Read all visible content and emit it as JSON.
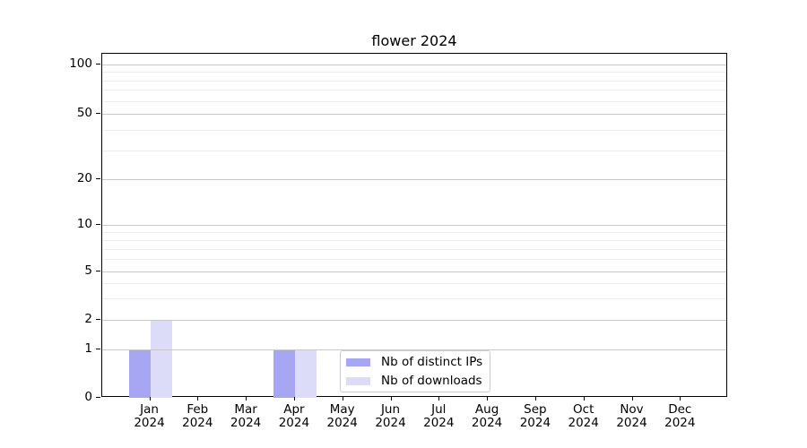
{
  "figure_title": "flower 2024",
  "chart_data": {
    "type": "bar",
    "title": "flower 2024",
    "categories": [
      "Jan 2024",
      "Feb 2024",
      "Mar 2024",
      "Apr 2024",
      "May 2024",
      "Jun 2024",
      "Jul 2024",
      "Aug 2024",
      "Sep 2024",
      "Oct 2024",
      "Nov 2024",
      "Dec 2024"
    ],
    "series": [
      {
        "name": "Nb of distinct IPs",
        "color": "#a6a6f3",
        "values": [
          1,
          0,
          0,
          1,
          0,
          0,
          0,
          0,
          0,
          0,
          0,
          0
        ]
      },
      {
        "name": "Nb of downloads",
        "color": "#dcdcf8",
        "values": [
          2,
          0,
          0,
          1,
          0,
          0,
          0,
          0,
          0,
          0,
          0,
          0
        ]
      }
    ],
    "xlabel": "",
    "ylabel": "",
    "y_axis": {
      "scale": "log-like (0 baseline then logarithmic)",
      "major_ticks": [
        0,
        1,
        2,
        5,
        10,
        20,
        50,
        100
      ],
      "minor_ticks": [
        3,
        4,
        6,
        7,
        8,
        9,
        30,
        40,
        60,
        70,
        80,
        90
      ],
      "range_top": 120
    },
    "grid": true,
    "legend": {
      "position": "lower center inside plot",
      "border_color": "#cccccc"
    },
    "colors": {
      "major_grid": "#c8c8c8",
      "minor_grid": "#ececec",
      "axis": "#000000",
      "background": "#ffffff"
    }
  }
}
